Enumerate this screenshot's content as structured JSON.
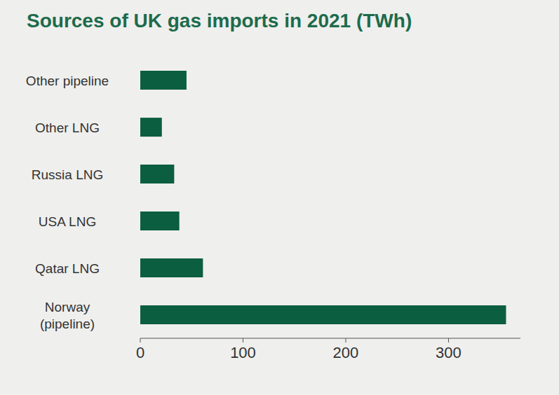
{
  "chart_data": {
    "type": "bar",
    "orientation": "horizontal",
    "title": "Sources of UK gas imports in 2021 (TWh)",
    "categories": [
      "Other pipeline",
      "Other LNG",
      "Russia LNG",
      "USA LNG",
      "Qatar LNG",
      "Norway (pipeline)"
    ],
    "values": [
      45,
      21,
      33,
      38,
      61,
      356
    ],
    "color": "#0b5e3f",
    "xlim": [
      0,
      370
    ],
    "xticks": [
      0,
      100,
      200,
      300
    ],
    "grid": false
  }
}
